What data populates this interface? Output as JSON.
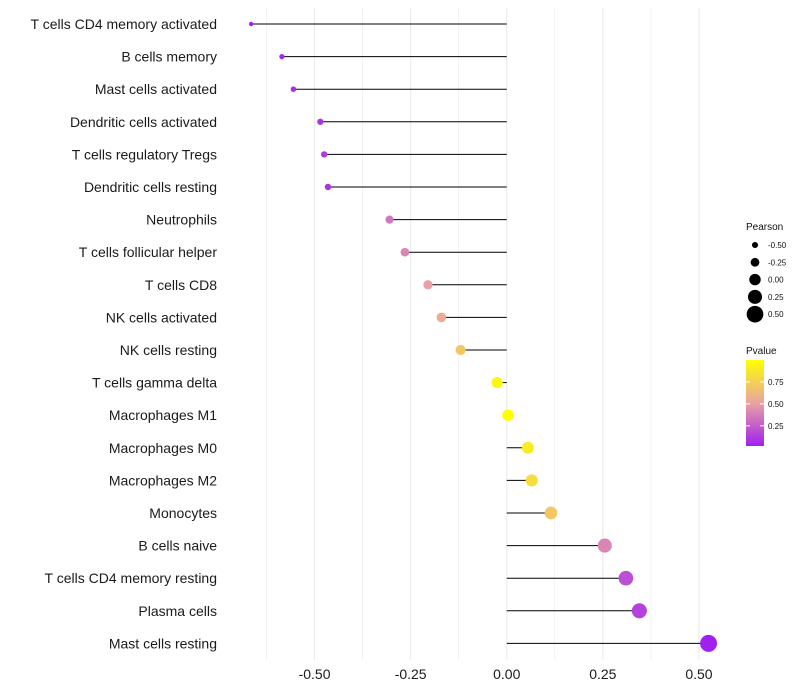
{
  "chart_data": {
    "type": "lollipop",
    "categories": [
      "T cells CD4 memory activated",
      "B cells memory",
      "Mast cells activated",
      "Dendritic cells activated",
      "T cells regulatory  Tregs ",
      "Dendritic cells resting",
      "Neutrophils",
      "T cells follicular helper",
      "T cells CD8",
      "NK cells activated",
      "NK cells resting",
      "T cells gamma delta",
      "Macrophages M1",
      "Macrophages M0",
      "Macrophages M2",
      "Monocytes",
      "B cells naive",
      "T cells CD4 memory resting",
      "Plasma cells",
      "Mast cells resting"
    ],
    "pearson": [
      -0.665,
      -0.585,
      -0.555,
      -0.485,
      -0.475,
      -0.465,
      -0.305,
      -0.265,
      -0.205,
      -0.17,
      -0.12,
      -0.025,
      0.003,
      0.055,
      0.065,
      0.115,
      0.255,
      0.31,
      0.345,
      0.525
    ],
    "pvalue": [
      0.02,
      0.05,
      0.08,
      0.1,
      0.12,
      0.1,
      0.35,
      0.4,
      0.5,
      0.55,
      0.7,
      0.95,
      1.0,
      0.9,
      0.82,
      0.7,
      0.4,
      0.2,
      0.15,
      0.02
    ],
    "x_ticks": [
      "-0.50",
      "-0.25",
      "0.00",
      "0.25",
      "0.50"
    ],
    "x_tick_values": [
      -0.5,
      -0.25,
      0.0,
      0.25,
      0.5
    ],
    "xlim": [
      -0.72,
      0.56
    ],
    "size_legend": {
      "title": "Pearson",
      "labels": [
        "-0.50",
        "-0.25",
        "0.00",
        "0.25",
        "0.50"
      ],
      "values": [
        -0.5,
        -0.25,
        0.0,
        0.25,
        0.5
      ]
    },
    "color_legend": {
      "title": "Pvalue",
      "labels": [
        "0.75",
        "0.50",
        "0.25"
      ],
      "values": [
        0.75,
        0.5,
        0.25
      ],
      "range": [
        0.02,
        1.0
      ]
    },
    "colors": {
      "low": "#a020f0",
      "mid": "#e9a3a3",
      "high": "#ffff00",
      "stem": "#000000",
      "grid": "#ebebeb"
    }
  }
}
